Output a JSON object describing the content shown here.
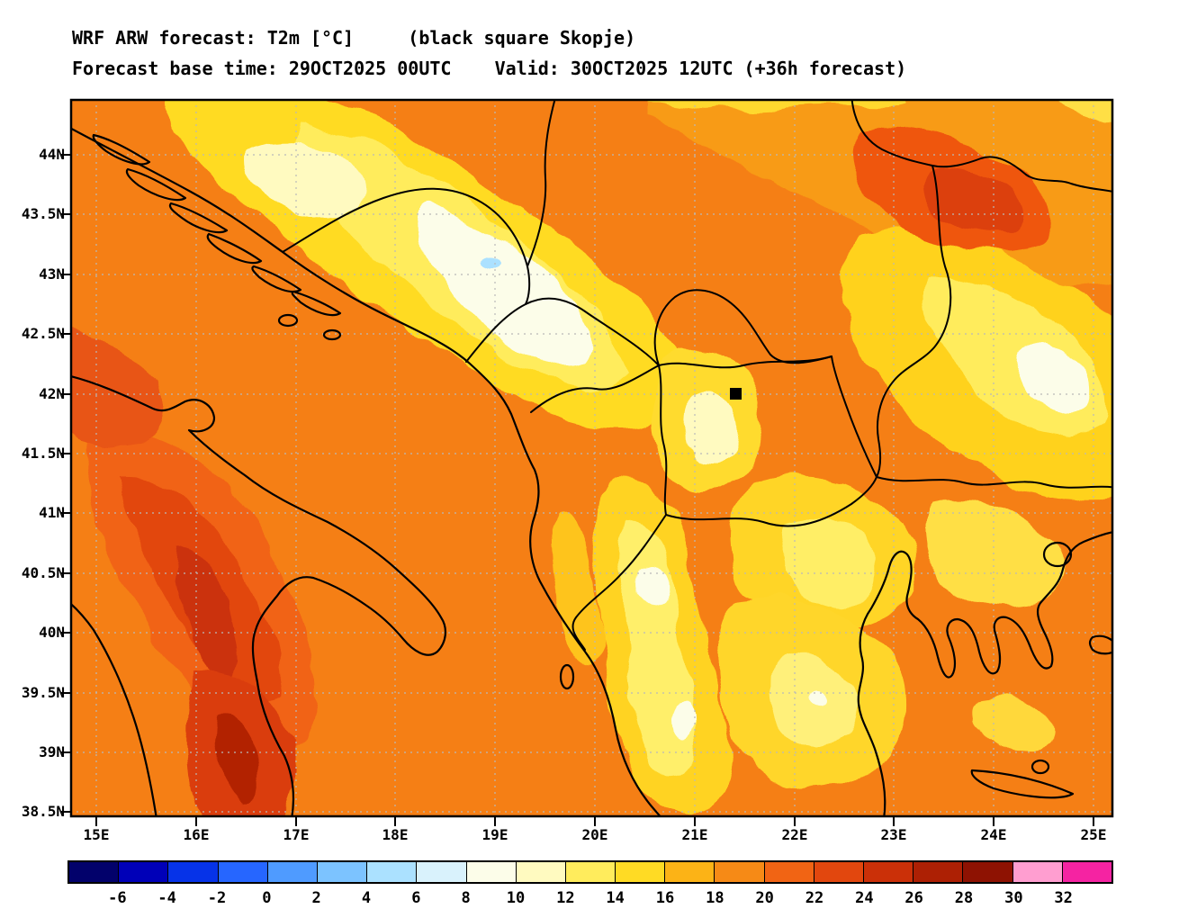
{
  "header": {
    "line1": "WRF ARW forecast: T2m [°C]     (black square Skopje)",
    "line2": "Forecast base time: 29OCT2025 00UTC    Valid: 30OCT2025 12UTC (+36h forecast)"
  },
  "map": {
    "variable": "T2m",
    "units": "°C",
    "marker": {
      "label": "Skopje",
      "shape": "black-square",
      "color": "#000000"
    },
    "lat_labels": [
      "44N",
      "43.5N",
      "43N",
      "42.5N",
      "42N",
      "41.5N",
      "41N",
      "40.5N",
      "40N",
      "39.5N",
      "39N",
      "38.5N"
    ],
    "lon_labels": [
      "15E",
      "16E",
      "17E",
      "18E",
      "19E",
      "20E",
      "21E",
      "22E",
      "23E",
      "24E",
      "25E"
    ],
    "grid": "dotted",
    "base_color": "#F57F15"
  },
  "colorbar": {
    "labels": [
      "-6",
      "-4",
      "-2",
      "0",
      "2",
      "4",
      "6",
      "8",
      "10",
      "12",
      "14",
      "16",
      "18",
      "20",
      "22",
      "24",
      "26",
      "28",
      "30",
      "32"
    ],
    "colors": [
      "#02016B",
      "#0000B8",
      "#0633E8",
      "#2666FF",
      "#4F9BFF",
      "#7CC3FF",
      "#ABE1FF",
      "#D9F2FC",
      "#FCFDE9",
      "#FFFAC0",
      "#FFEC5C",
      "#FFDB24",
      "#FCB316",
      "#F68A16",
      "#F16414",
      "#E2470E",
      "#CB3008",
      "#AD2004",
      "#8E1202",
      "#FF9ED0",
      "#F523A2"
    ]
  }
}
